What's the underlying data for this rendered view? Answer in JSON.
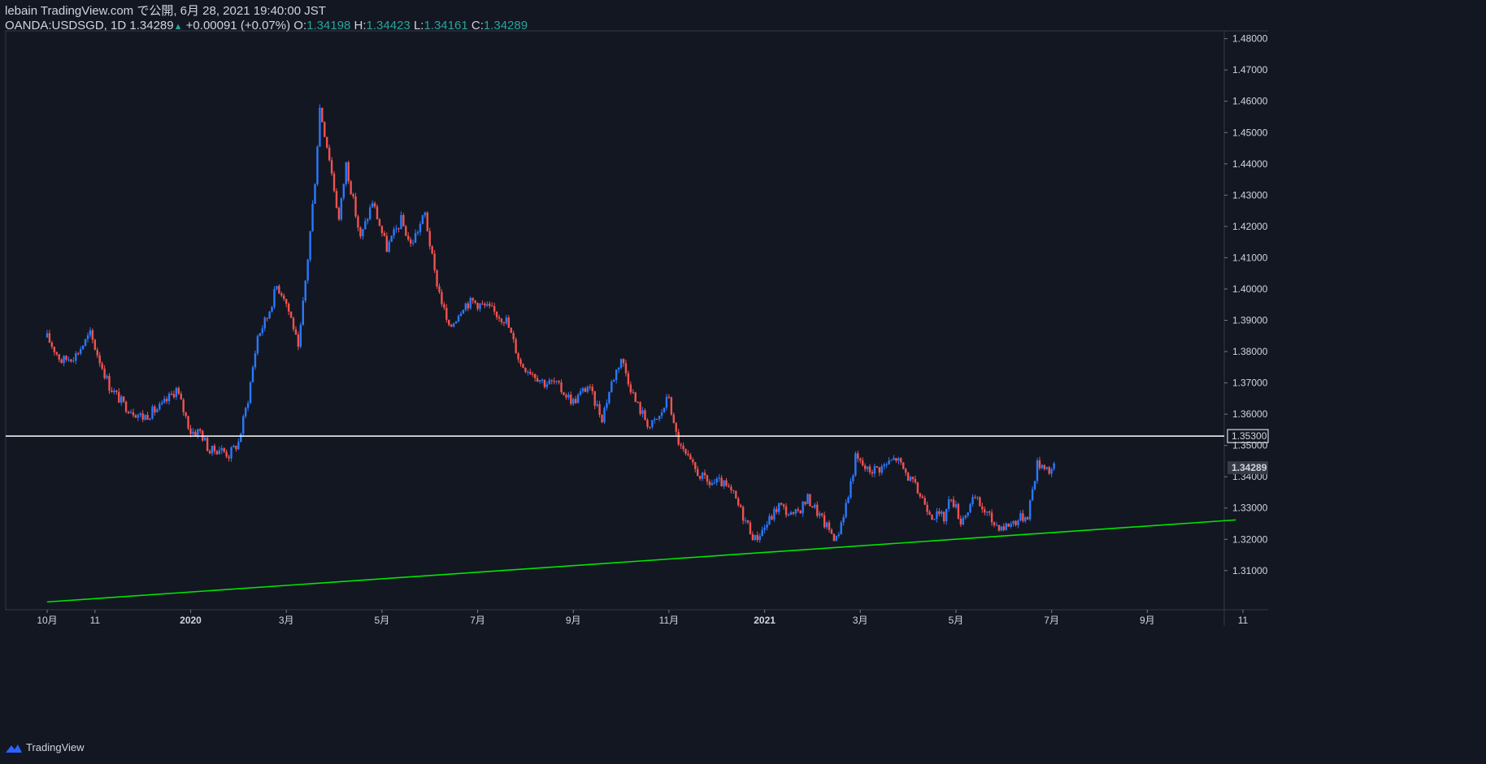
{
  "header": {
    "line1": "lebain TradingView.com で公開, 6月 28, 2021 19:40:00 JST",
    "symbol": "OANDA:USDSGD, 1D",
    "last": "1.34289",
    "arrow": "▲",
    "change": "+0.00091 (+0.07%)",
    "o_label": "O:",
    "o_value": "1.34198",
    "h_label": "H:",
    "h_value": "1.34423",
    "l_label": "L:",
    "l_value": "1.34161",
    "c_label": "C:",
    "c_value": "1.34289"
  },
  "footer": {
    "brand": "TradingView"
  },
  "colors": {
    "background": "#131722",
    "up": "#2979ff",
    "down": "#ef5350",
    "grid": "#363a45",
    "resistance": "#ffffff",
    "support": "#00e600",
    "price_label_bg": "#363a45"
  },
  "chart_data": {
    "type": "candlestick",
    "title": "OANDA:USDSGD, 1D",
    "ylim": [
      1.2975,
      1.4825
    ],
    "y_ticks": [
      "1.31000",
      "1.32000",
      "1.33000",
      "1.34000",
      "1.35000",
      "1.36000",
      "1.37000",
      "1.38000",
      "1.39000",
      "1.40000",
      "1.41000",
      "1.42000",
      "1.43000",
      "1.44000",
      "1.45000",
      "1.46000",
      "1.47000",
      "1.48000"
    ],
    "y_tick_values": [
      1.31,
      1.32,
      1.33,
      1.34,
      1.35,
      1.36,
      1.37,
      1.38,
      1.39,
      1.4,
      1.41,
      1.42,
      1.43,
      1.44,
      1.45,
      1.46,
      1.47,
      1.48
    ],
    "x_ticks": [
      {
        "label": "10月",
        "month": 0
      },
      {
        "label": "11",
        "month": 1
      },
      {
        "label": "2020",
        "month": 3,
        "bold": true
      },
      {
        "label": "3月",
        "month": 5
      },
      {
        "label": "5月",
        "month": 7
      },
      {
        "label": "7月",
        "month": 9
      },
      {
        "label": "9月",
        "month": 11
      },
      {
        "label": "11月",
        "month": 13
      },
      {
        "label": "2021",
        "month": 15,
        "bold": true
      },
      {
        "label": "3月",
        "month": 17
      },
      {
        "label": "5月",
        "month": 19
      },
      {
        "label": "7月",
        "month": 21
      },
      {
        "label": "9月",
        "month": 23
      },
      {
        "label": "11",
        "month": 25
      }
    ],
    "series_closes": [
      [
        0,
        1.3845
      ],
      [
        0.3,
        1.377
      ],
      [
        0.6,
        1.379
      ],
      [
        0.9,
        1.3855
      ],
      [
        1.3,
        1.369
      ],
      [
        1.6,
        1.363
      ],
      [
        2.0,
        1.359
      ],
      [
        2.4,
        1.3625
      ],
      [
        2.7,
        1.368
      ],
      [
        3.0,
        1.3545
      ],
      [
        3.2,
        1.3545
      ],
      [
        3.4,
        1.348
      ],
      [
        3.6,
        1.349
      ],
      [
        3.8,
        1.347
      ],
      [
        4.0,
        1.351
      ],
      [
        4.2,
        1.365
      ],
      [
        4.4,
        1.385
      ],
      [
        4.6,
        1.391
      ],
      [
        4.8,
        1.401
      ],
      [
        4.95,
        1.398
      ],
      [
        5.15,
        1.388
      ],
      [
        5.25,
        1.38
      ],
      [
        5.45,
        1.41
      ],
      [
        5.6,
        1.435
      ],
      [
        5.7,
        1.458
      ],
      [
        5.9,
        1.442
      ],
      [
        6.1,
        1.422
      ],
      [
        6.25,
        1.44
      ],
      [
        6.55,
        1.416
      ],
      [
        6.8,
        1.428
      ],
      [
        7.1,
        1.413
      ],
      [
        7.4,
        1.422
      ],
      [
        7.6,
        1.414
      ],
      [
        7.9,
        1.424
      ],
      [
        8.1,
        1.405
      ],
      [
        8.4,
        1.387
      ],
      [
        8.7,
        1.395
      ],
      [
        8.9,
        1.396
      ],
      [
        9.2,
        1.394
      ],
      [
        9.6,
        1.39
      ],
      [
        9.9,
        1.376
      ],
      [
        10.1,
        1.374
      ],
      [
        10.4,
        1.37
      ],
      [
        10.6,
        1.37
      ],
      [
        11.0,
        1.364
      ],
      [
        11.3,
        1.369
      ],
      [
        11.6,
        1.359
      ],
      [
        11.8,
        1.37
      ],
      [
        12.0,
        1.378
      ],
      [
        12.3,
        1.364
      ],
      [
        12.6,
        1.356
      ],
      [
        12.8,
        1.359
      ],
      [
        13.0,
        1.366
      ],
      [
        13.1,
        1.356
      ],
      [
        13.25,
        1.349
      ],
      [
        13.5,
        1.343
      ],
      [
        13.8,
        1.338
      ],
      [
        14.1,
        1.338
      ],
      [
        14.35,
        1.334
      ],
      [
        14.6,
        1.326
      ],
      [
        14.8,
        1.32
      ],
      [
        15.05,
        1.325
      ],
      [
        15.3,
        1.331
      ],
      [
        15.6,
        1.327
      ],
      [
        15.9,
        1.333
      ],
      [
        16.05,
        1.33
      ],
      [
        16.25,
        1.325
      ],
      [
        16.5,
        1.32
      ],
      [
        16.75,
        1.334
      ],
      [
        16.9,
        1.346
      ],
      [
        17.15,
        1.342
      ],
      [
        17.45,
        1.343
      ],
      [
        17.75,
        1.346
      ],
      [
        18.0,
        1.34
      ],
      [
        18.3,
        1.333
      ],
      [
        18.5,
        1.328
      ],
      [
        18.75,
        1.327
      ],
      [
        18.9,
        1.334
      ],
      [
        19.1,
        1.326
      ],
      [
        19.4,
        1.333
      ],
      [
        19.6,
        1.329
      ],
      [
        19.8,
        1.325
      ],
      [
        20.0,
        1.324
      ],
      [
        20.25,
        1.326
      ],
      [
        20.5,
        1.328
      ],
      [
        20.7,
        1.344
      ],
      [
        20.85,
        1.344
      ],
      [
        20.95,
        1.342
      ],
      [
        21.05,
        1.3429
      ]
    ],
    "horizontal_lines": [
      {
        "name": "resistance",
        "value": 1.353,
        "label": "1.35300"
      }
    ],
    "last_price": {
      "value": 1.34289,
      "label": "1.34289"
    },
    "trendline": {
      "name": "support",
      "start": {
        "month": 0,
        "value": 1.3
      },
      "end": {
        "month": 24.85,
        "value": 1.3262
      }
    }
  }
}
